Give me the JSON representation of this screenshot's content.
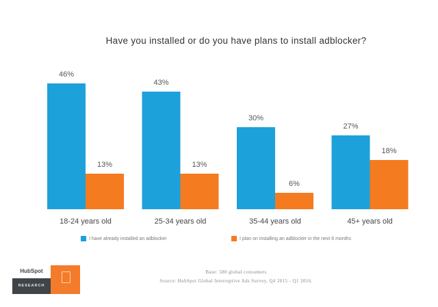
{
  "chart_data": {
    "type": "bar",
    "title": "Have you installed or do you have plans to install adblocker?",
    "categories": [
      "18-24 years old",
      "25-34 years old",
      "35-44 years old",
      "45+ years old"
    ],
    "series": [
      {
        "name": "I have already installed an adblocker",
        "color": "#1da1db",
        "values": [
          46,
          43,
          30,
          27
        ],
        "labels": [
          "46%",
          "43%",
          "30%",
          "27%"
        ]
      },
      {
        "name": "I plan on installing an adblocker in the next 6 months",
        "color": "#f47b20",
        "values": [
          13,
          13,
          6,
          18
        ],
        "labels": [
          "13%",
          "13%",
          "6%",
          "18%"
        ]
      }
    ],
    "xlabel": "",
    "ylabel": "",
    "ylim": [
      0,
      50
    ],
    "grid": false,
    "legend_position": "bottom",
    "value_unit": "%"
  },
  "footer": {
    "logo_brand": "HubSpot",
    "logo_tag": "RESEARCH",
    "base_note": "Base: 580 global consumers",
    "source_note": "Source: HubSpot Global Interruptive Ads Survey, Q4 2015 - Q1 2016."
  }
}
